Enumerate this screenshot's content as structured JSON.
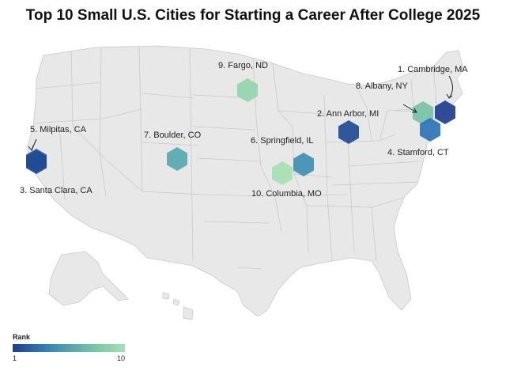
{
  "title": "Top 10 Small U.S. Cities for Starting a Career After College 2025",
  "legend": {
    "title": "Rank",
    "min_label": "1",
    "max_label": "10",
    "color_low": "#1b3f8f",
    "color_high": "#a6e0b2"
  },
  "cities": [
    {
      "rank": 1,
      "label": "1. Cambridge, MA",
      "color": "#1d3e8e"
    },
    {
      "rank": 2,
      "label": "2. Ann Arbor, MI",
      "color": "#1f4a92"
    },
    {
      "rank": 3,
      "label": "3. Santa Clara, CA",
      "color": "#1f4a92"
    },
    {
      "rank": 4,
      "label": "4. Stamford, CT",
      "color": "#2c74b8"
    },
    {
      "rank": 5,
      "label": "5. Milpitas, CA",
      "color": "#27589e"
    },
    {
      "rank": 6,
      "label": "6. Springfield, IL",
      "color": "#3e8eb3"
    },
    {
      "rank": 7,
      "label": "7. Boulder, CO",
      "color": "#55a8b0"
    },
    {
      "rank": 8,
      "label": "8. Albany, NY",
      "color": "#77c2a6"
    },
    {
      "rank": 9,
      "label": "9. Fargo, ND",
      "color": "#94d4ad"
    },
    {
      "rank": 10,
      "label": "10. Columbia, MO",
      "color": "#a6e0b2"
    }
  ]
}
